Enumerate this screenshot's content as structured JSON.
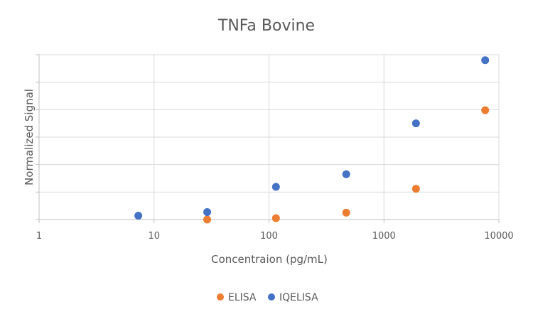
{
  "chart_data": {
    "type": "scatter",
    "title": "TNFa Bovine",
    "xlabel": "Concentraion (pg/mL)",
    "ylabel": "Normalized Signal",
    "xscale": "log",
    "xlim": [
      1,
      10000
    ],
    "x_ticks": [
      "1",
      "10",
      "100",
      "1000",
      "10000"
    ],
    "ylim": [
      0,
      6
    ],
    "y_ticks": [
      0,
      1,
      2,
      3,
      4,
      5,
      6
    ],
    "y_tick_labels_visible": false,
    "grid": true,
    "legend_position": "bottom",
    "series": [
      {
        "name": "ELISA",
        "color": "#ed7d31",
        "points": [
          {
            "x": 29,
            "y": 0.0
          },
          {
            "x": 115,
            "y": 0.05
          },
          {
            "x": 470,
            "y": 0.25
          },
          {
            "x": 1900,
            "y": 1.12
          },
          {
            "x": 7600,
            "y": 3.98
          }
        ]
      },
      {
        "name": "IQELISA",
        "color": "#4472c4",
        "points": [
          {
            "x": 7.3,
            "y": 0.14
          },
          {
            "x": 29,
            "y": 0.27
          },
          {
            "x": 115,
            "y": 1.19
          },
          {
            "x": 470,
            "y": 1.65
          },
          {
            "x": 1900,
            "y": 3.5
          },
          {
            "x": 7600,
            "y": 5.8
          }
        ]
      }
    ]
  }
}
